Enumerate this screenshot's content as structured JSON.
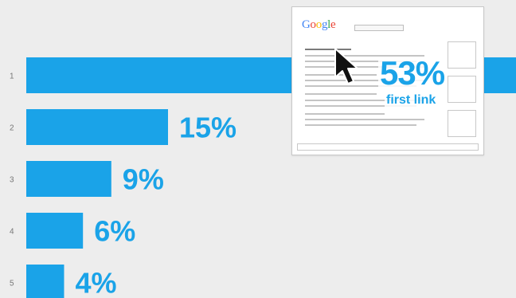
{
  "chart_data": {
    "type": "bar",
    "orientation": "horizontal",
    "categories": [
      "1",
      "2",
      "3",
      "4",
      "5"
    ],
    "values": [
      53,
      15,
      9,
      6,
      4
    ],
    "data_labels": [
      "53%",
      "15%",
      "9%",
      "6%",
      "4%"
    ],
    "unit": "%",
    "title": "",
    "xlabel": "",
    "ylabel": "",
    "xlim": [
      0,
      15
    ],
    "grid": false,
    "bar_color": "#1aa3e8"
  },
  "callout": {
    "logo": "Google",
    "value": "53%",
    "label": "first link"
  },
  "colors": {
    "accent": "#1aa3e8",
    "background": "#ededed",
    "google_blue": "#4285f4",
    "google_red": "#ea4335",
    "google_yellow": "#fbbc05",
    "google_green": "#34a853"
  },
  "icons": {
    "cursor": "arrow-cursor-icon"
  }
}
